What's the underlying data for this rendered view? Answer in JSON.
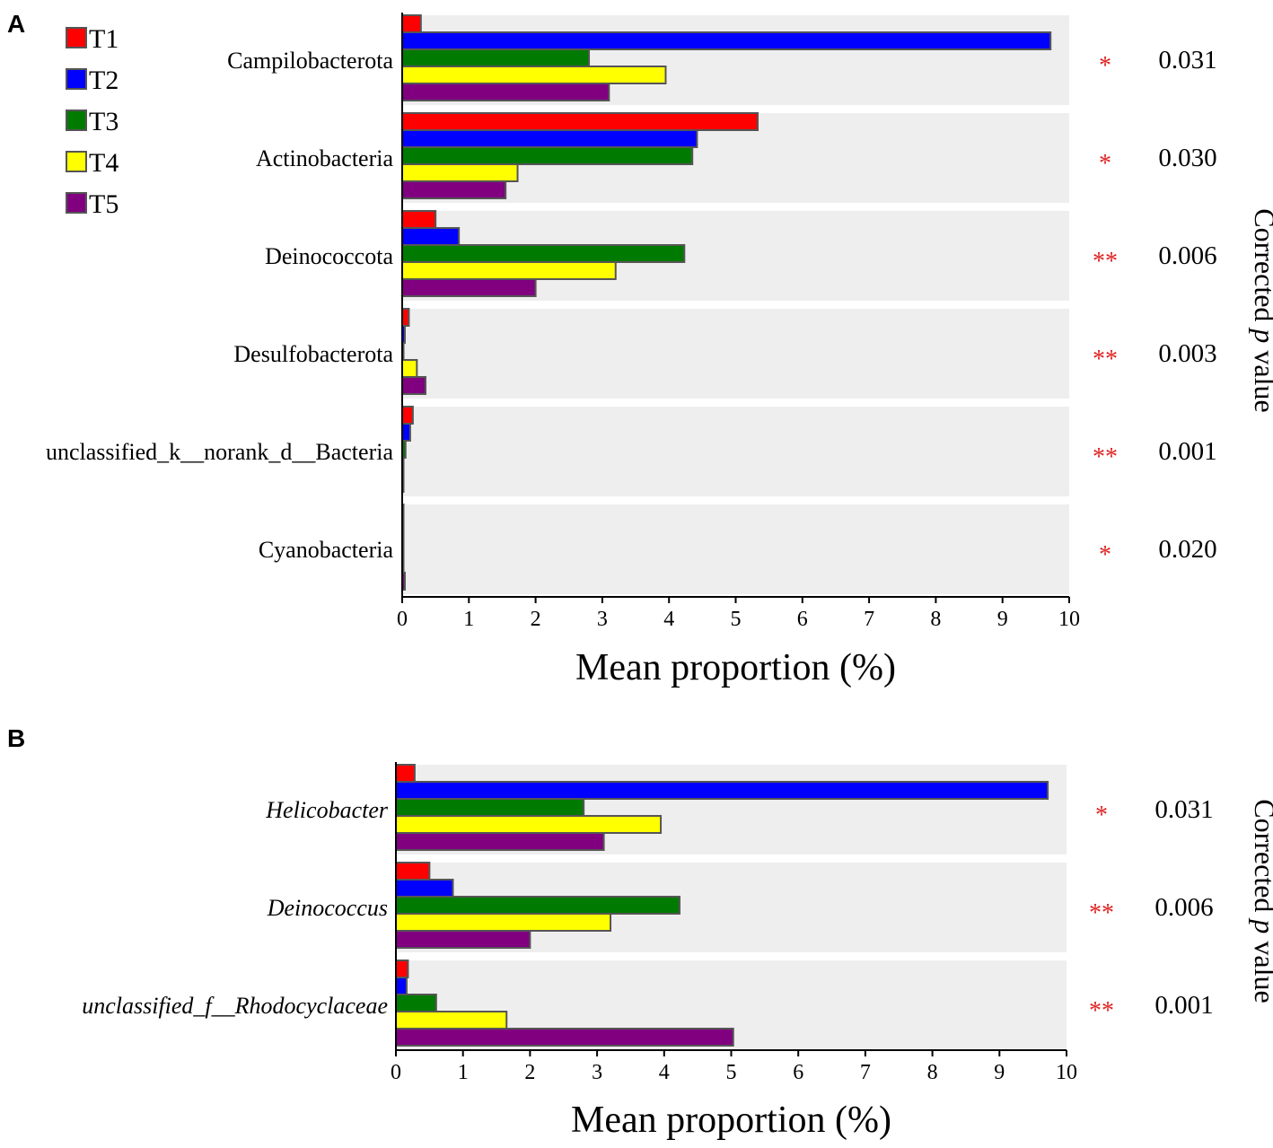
{
  "colors": {
    "T1": "#ff0000",
    "T2": "#0000ff",
    "T3": "#007a00",
    "T4": "#ffff00",
    "T5": "#800080",
    "band": "#eeeeee",
    "bar_stroke": "#555555",
    "star": "#e02020"
  },
  "legend": {
    "items": [
      "T1",
      "T2",
      "T3",
      "T4",
      "T5"
    ]
  },
  "chart_data": [
    {
      "panel": "A",
      "type": "bar",
      "orientation": "horizontal",
      "categories": [
        "Campilobacterota",
        "Actinobacteria",
        "Deinococcota",
        "Desulfobacterota",
        "unclassified_k__norank_d__Bacteria",
        "Cyanobacteria"
      ],
      "category_italic": false,
      "series": [
        {
          "name": "T1",
          "values": [
            0.28,
            5.33,
            0.5,
            0.1,
            0.16,
            0.01
          ]
        },
        {
          "name": "T2",
          "values": [
            9.72,
            4.42,
            0.85,
            0.04,
            0.12,
            0.02
          ]
        },
        {
          "name": "T3",
          "values": [
            2.8,
            4.35,
            4.23,
            0.02,
            0.05,
            0.01
          ]
        },
        {
          "name": "T4",
          "values": [
            3.95,
            1.73,
            3.2,
            0.22,
            0.02,
            0.01
          ]
        },
        {
          "name": "T5",
          "values": [
            3.1,
            1.55,
            2.0,
            0.35,
            0.01,
            0.04
          ]
        }
      ],
      "significance": [
        "*",
        "*",
        "**",
        "**",
        "**",
        "*"
      ],
      "p_values": [
        "0.031",
        "0.030",
        "0.006",
        "0.003",
        "0.001",
        "0.020"
      ],
      "xlim": [
        0,
        10
      ],
      "xticks": [
        "0",
        "1",
        "2",
        "3",
        "4",
        "5",
        "6",
        "7",
        "8",
        "9",
        "10"
      ],
      "xlabel": "Mean proportion (%)",
      "right_label_prefix": "Corrected ",
      "right_label_italic": "p",
      "right_label_suffix": " value"
    },
    {
      "panel": "B",
      "type": "bar",
      "orientation": "horizontal",
      "categories": [
        "Helicobacter",
        "Deinococcus",
        "unclassified_f__Rhodocyclaceae"
      ],
      "category_italic": true,
      "series": [
        {
          "name": "T1",
          "values": [
            0.28,
            0.5,
            0.18
          ]
        },
        {
          "name": "T2",
          "values": [
            9.72,
            0.85,
            0.16
          ]
        },
        {
          "name": "T3",
          "values": [
            2.8,
            4.23,
            0.6
          ]
        },
        {
          "name": "T4",
          "values": [
            3.95,
            3.2,
            1.65
          ]
        },
        {
          "name": "T5",
          "values": [
            3.1,
            2.0,
            5.03
          ]
        }
      ],
      "significance": [
        "*",
        "**",
        "**"
      ],
      "p_values": [
        "0.031",
        "0.006",
        "0.001"
      ],
      "xlim": [
        0,
        10
      ],
      "xticks": [
        "0",
        "1",
        "2",
        "3",
        "4",
        "5",
        "6",
        "7",
        "8",
        "9",
        "10"
      ],
      "xlabel": "Mean proportion (%)",
      "right_label_prefix": "Corrected ",
      "right_label_italic": "p",
      "right_label_suffix": " value"
    }
  ]
}
